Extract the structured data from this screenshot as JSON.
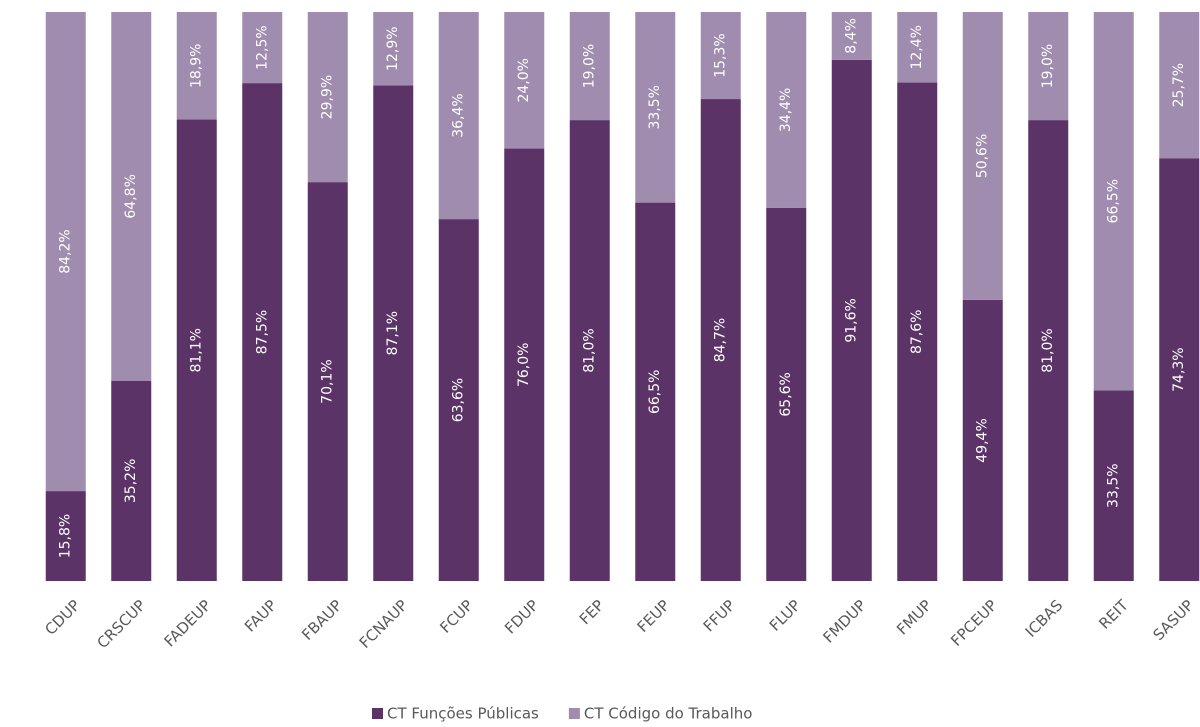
{
  "chart_data": {
    "type": "stacked_bar",
    "categories": [
      "CDUP",
      "CRSCUP",
      "FADEUP",
      "FAUP",
      "FBAUP",
      "FCNAUP",
      "FCUP",
      "FDUP",
      "FEP",
      "FEUP",
      "FFUP",
      "FLUP",
      "FMDUP",
      "FMUP",
      "FPCEUP",
      "ICBAS",
      "REIT",
      "SASUP"
    ],
    "series": [
      {
        "name": "CT Funções Públicas",
        "color": "#5b3367",
        "values": [
          15.8,
          35.2,
          81.1,
          87.5,
          70.1,
          87.1,
          63.6,
          76.0,
          81.0,
          66.5,
          84.7,
          65.6,
          91.6,
          87.6,
          49.4,
          81.0,
          33.5,
          74.3
        ],
        "value_labels": [
          "15,8%",
          "35,2%",
          "81,1%",
          "87,5%",
          "70,1%",
          "87,1%",
          "63,6%",
          "76,0%",
          "81,0%",
          "66,5%",
          "84,7%",
          "65,6%",
          "91,6%",
          "87,6%",
          "49,4%",
          "81,0%",
          "33,5%",
          "74,3%"
        ]
      },
      {
        "name": "CT Código do Trabalho",
        "color": "#a08cae",
        "values": [
          84.2,
          64.8,
          18.9,
          12.5,
          29.9,
          12.9,
          36.4,
          24.0,
          19.0,
          33.5,
          15.3,
          34.4,
          8.4,
          12.4,
          50.6,
          19.0,
          66.5,
          25.7
        ],
        "value_labels": [
          "84,2%",
          "64,8%",
          "18,9%",
          "12,5%",
          "29,9%",
          "12,9%",
          "36,4%",
          "24,0%",
          "19,0%",
          "33,5%",
          "15,3%",
          "34,4%",
          "8,4%",
          "12,4%",
          "50,6%",
          "19,0%",
          "66,5%",
          "25,7%"
        ]
      }
    ],
    "ylim": [
      0,
      100
    ],
    "legend": "bottom"
  }
}
